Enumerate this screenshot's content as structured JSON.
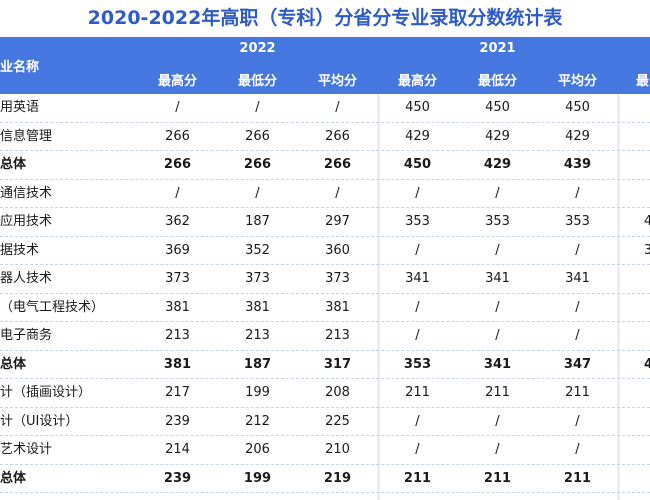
{
  "title": "2020-2022年高职（专科）分省分专业录取分数统计表",
  "header": {
    "major_col": "业名称",
    "years": [
      "2022",
      "2021"
    ],
    "sub_2022": [
      "最高分",
      "最低分",
      "平均分"
    ],
    "sub_2021": [
      "最高分",
      "最低分",
      "平均分"
    ],
    "sub_partial": "最"
  },
  "rows": [
    {
      "name": "用英语",
      "v2022": [
        "/",
        "/",
        "/"
      ],
      "v2021": [
        "450",
        "450",
        "450"
      ],
      "extra": "",
      "total": false
    },
    {
      "name": "信息管理",
      "v2022": [
        "266",
        "266",
        "266"
      ],
      "v2021": [
        "429",
        "429",
        "429"
      ],
      "extra": "",
      "total": false
    },
    {
      "name": "总体",
      "v2022": [
        "266",
        "266",
        "266"
      ],
      "v2021": [
        "450",
        "429",
        "439"
      ],
      "extra": "",
      "total": true
    },
    {
      "name": "通信技术",
      "v2022": [
        "/",
        "/",
        "/"
      ],
      "v2021": [
        "/",
        "/",
        "/"
      ],
      "extra": "",
      "total": false
    },
    {
      "name": "应用技术",
      "v2022": [
        "362",
        "187",
        "297"
      ],
      "v2021": [
        "353",
        "353",
        "353"
      ],
      "extra": "4",
      "total": false
    },
    {
      "name": "据技术",
      "v2022": [
        "369",
        "352",
        "360"
      ],
      "v2021": [
        "/",
        "/",
        "/"
      ],
      "extra": "3",
      "total": false
    },
    {
      "name": "器人技术",
      "v2022": [
        "373",
        "373",
        "373"
      ],
      "v2021": [
        "341",
        "341",
        "341"
      ],
      "extra": "",
      "total": false
    },
    {
      "name": "（电气工程技术）",
      "v2022": [
        "381",
        "381",
        "381"
      ],
      "v2021": [
        "/",
        "/",
        "/"
      ],
      "extra": "",
      "total": false
    },
    {
      "name": "电子商务",
      "v2022": [
        "213",
        "213",
        "213"
      ],
      "v2021": [
        "/",
        "/",
        "/"
      ],
      "extra": "",
      "total": false
    },
    {
      "name": "总体",
      "v2022": [
        "381",
        "187",
        "317"
      ],
      "v2021": [
        "353",
        "341",
        "347"
      ],
      "extra": "4",
      "total": true
    },
    {
      "name": "计（插画设计）",
      "v2022": [
        "217",
        "199",
        "208"
      ],
      "v2021": [
        "211",
        "211",
        "211"
      ],
      "extra": "",
      "total": false
    },
    {
      "name": "计（UI设计）",
      "v2022": [
        "239",
        "212",
        "225"
      ],
      "v2021": [
        "/",
        "/",
        "/"
      ],
      "extra": "",
      "total": false
    },
    {
      "name": "艺术设计",
      "v2022": [
        "214",
        "206",
        "210"
      ],
      "v2021": [
        "/",
        "/",
        "/"
      ],
      "extra": "",
      "total": false
    },
    {
      "name": "总体",
      "v2022": [
        "239",
        "199",
        "219"
      ],
      "v2021": [
        "211",
        "211",
        "211"
      ],
      "extra": "",
      "total": true
    }
  ]
}
